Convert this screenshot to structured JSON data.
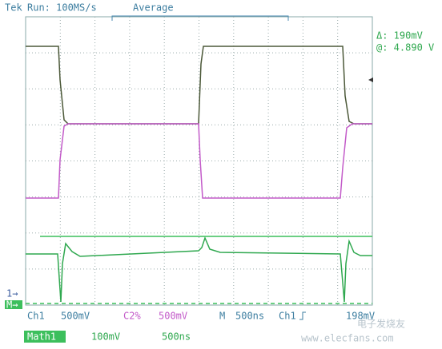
{
  "header": {
    "brand": "Tek",
    "status": "Run: 100MS/s",
    "mode": "Average"
  },
  "cursor": {
    "delta": "Δ: 190mV",
    "at": "@: 4.890 V"
  },
  "markers": {
    "ch1": "1→",
    "math": "M→"
  },
  "footer": {
    "ch1": "Ch1",
    "ch1_scale": "500mV",
    "ch2": "C2%",
    "ch2_scale": "500mV",
    "time_label": "M",
    "time_scale": "500ns",
    "trigger_source": "Ch1",
    "trigger_level": "198mV",
    "math": "Math1",
    "math_scale": "100mV",
    "math_time": "500ns"
  },
  "watermark": {
    "site": "www.elecfans.com",
    "brand": "电子发烧友"
  }
}
